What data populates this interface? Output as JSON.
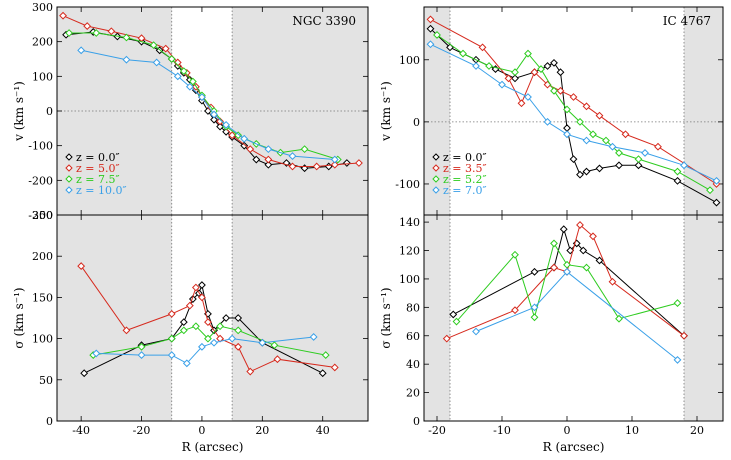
{
  "chart_data": [
    {
      "type": "scatter",
      "panel": "NGC 3390 velocity",
      "title": "NGC 3390",
      "xlabel": "",
      "ylabel": "v (km s⁻¹)",
      "xlim": [
        -48,
        55
      ],
      "ylim": [
        -300,
        300
      ],
      "xticks": [
        -40,
        -20,
        0,
        20,
        40
      ],
      "yticks": [
        -300,
        -200,
        -100,
        0,
        100,
        200,
        300
      ],
      "shade": [
        [
          -48,
          -10
        ],
        [
          10,
          55
        ]
      ],
      "zero_line": true,
      "vlines": [
        -10,
        10
      ],
      "legend_position": "bottom-left",
      "series": [
        {
          "name": "z = 0.0″",
          "color": "#000000",
          "points": [
            [
              -45,
              220
            ],
            [
              -36,
              228
            ],
            [
              -28,
              215
            ],
            [
              -20,
              200
            ],
            [
              -14,
              175
            ],
            [
              -10,
              150
            ],
            [
              -8,
              130
            ],
            [
              -6,
              110
            ],
            [
              -4,
              90
            ],
            [
              -2,
              60
            ],
            [
              0,
              30
            ],
            [
              2,
              0
            ],
            [
              4,
              -25
            ],
            [
              6,
              -45
            ],
            [
              8,
              -60
            ],
            [
              10,
              -75
            ],
            [
              14,
              -100
            ],
            [
              18,
              -140
            ],
            [
              22,
              -155
            ],
            [
              28,
              -150
            ],
            [
              34,
              -165
            ],
            [
              42,
              -160
            ],
            [
              48,
              -150
            ]
          ]
        },
        {
          "name": "z = 5.0″",
          "color": "#d62a1e",
          "points": [
            [
              -46,
              275
            ],
            [
              -38,
              245
            ],
            [
              -30,
              230
            ],
            [
              -20,
              210
            ],
            [
              -12,
              180
            ],
            [
              -8,
              140
            ],
            [
              -5,
              110
            ],
            [
              -2,
              70
            ],
            [
              0,
              40
            ],
            [
              3,
              10
            ],
            [
              6,
              -30
            ],
            [
              10,
              -70
            ],
            [
              16,
              -110
            ],
            [
              22,
              -140
            ],
            [
              30,
              -160
            ],
            [
              38,
              -160
            ],
            [
              44,
              -155
            ],
            [
              52,
              -150
            ]
          ]
        },
        {
          "name": "z = 7.5″",
          "color": "#2ecc20",
          "points": [
            [
              -44,
              225
            ],
            [
              -35,
              225
            ],
            [
              -25,
              212
            ],
            [
              -16,
              190
            ],
            [
              -10,
              150
            ],
            [
              -6,
              115
            ],
            [
              -3,
              85
            ],
            [
              0,
              45
            ],
            [
              4,
              0
            ],
            [
              8,
              -45
            ],
            [
              12,
              -70
            ],
            [
              18,
              -95
            ],
            [
              26,
              -120
            ],
            [
              34,
              -110
            ],
            [
              45,
              -140
            ]
          ]
        },
        {
          "name": "z = 10.0″",
          "color": "#3aa0e8",
          "points": [
            [
              -40,
              175
            ],
            [
              -25,
              148
            ],
            [
              -15,
              140
            ],
            [
              -8,
              100
            ],
            [
              -4,
              70
            ],
            [
              0,
              40
            ],
            [
              4,
              -10
            ],
            [
              8,
              -40
            ],
            [
              14,
              -80
            ],
            [
              22,
              -110
            ],
            [
              30,
              -130
            ],
            [
              44,
              -140
            ]
          ]
        }
      ]
    },
    {
      "type": "scatter",
      "panel": "NGC 3390 dispersion",
      "title": "",
      "xlabel": "R (arcsec)",
      "ylabel": "σ (km s⁻¹)",
      "xlim": [
        -48,
        55
      ],
      "ylim": [
        0,
        250
      ],
      "xticks": [
        -40,
        -20,
        0,
        20,
        40
      ],
      "yticks": [
        0,
        50,
        100,
        150,
        200,
        250
      ],
      "shade": [
        [
          -48,
          -10
        ],
        [
          10,
          55
        ]
      ],
      "vlines": [
        -10,
        10
      ],
      "series": [
        {
          "name": "z = 0.0″",
          "color": "#000000",
          "points": [
            [
              -39,
              58
            ],
            [
              -20,
              92
            ],
            [
              -10,
              100
            ],
            [
              -6,
              120
            ],
            [
              -3,
              148
            ],
            [
              -1,
              155
            ],
            [
              0,
              165
            ],
            [
              2,
              130
            ],
            [
              4,
              110
            ],
            [
              8,
              125
            ],
            [
              12,
              125
            ],
            [
              20,
              95
            ],
            [
              40,
              58
            ]
          ]
        },
        {
          "name": "z = 5.0″",
          "color": "#d62a1e",
          "points": [
            [
              -40,
              188
            ],
            [
              -25,
              110
            ],
            [
              -10,
              130
            ],
            [
              -4,
              140
            ],
            [
              -2,
              162
            ],
            [
              0,
              150
            ],
            [
              2,
              120
            ],
            [
              6,
              100
            ],
            [
              12,
              90
            ],
            [
              16,
              60
            ],
            [
              25,
              75
            ],
            [
              44,
              65
            ]
          ]
        },
        {
          "name": "z = 7.5″",
          "color": "#2ecc20",
          "points": [
            [
              -36,
              80
            ],
            [
              -20,
              90
            ],
            [
              -10,
              100
            ],
            [
              -6,
              110
            ],
            [
              -2,
              115
            ],
            [
              2,
              100
            ],
            [
              6,
              115
            ],
            [
              12,
              110
            ],
            [
              24,
              92
            ],
            [
              41,
              80
            ]
          ]
        },
        {
          "name": "z = 10.0″",
          "color": "#3aa0e8",
          "points": [
            [
              -35,
              82
            ],
            [
              -20,
              80
            ],
            [
              -10,
              80
            ],
            [
              -5,
              70
            ],
            [
              0,
              90
            ],
            [
              4,
              95
            ],
            [
              10,
              100
            ],
            [
              20,
              95
            ],
            [
              37,
              102
            ]
          ]
        }
      ]
    },
    {
      "type": "scatter",
      "panel": "IC 4767 velocity",
      "title": "IC 4767",
      "xlabel": "",
      "ylabel": "v (km s⁻¹)",
      "xlim": [
        -22,
        24
      ],
      "ylim": [
        -150,
        185
      ],
      "xticks": [
        -20,
        -10,
        0,
        10,
        20
      ],
      "yticks": [
        -100,
        0,
        100
      ],
      "shade": [
        [
          -22,
          -18
        ],
        [
          18,
          24
        ]
      ],
      "zero_line": true,
      "vlines": [
        -18,
        18
      ],
      "legend_position": "bottom-left",
      "series": [
        {
          "name": "z = 0.0″",
          "color": "#000000",
          "points": [
            [
              -21,
              150
            ],
            [
              -18,
              120
            ],
            [
              -14,
              100
            ],
            [
              -11,
              85
            ],
            [
              -8,
              70
            ],
            [
              -5,
              80
            ],
            [
              -3,
              90
            ],
            [
              -2,
              95
            ],
            [
              -1,
              80
            ],
            [
              0,
              -10
            ],
            [
              1,
              -60
            ],
            [
              2,
              -85
            ],
            [
              3,
              -80
            ],
            [
              5,
              -75
            ],
            [
              8,
              -70
            ],
            [
              11,
              -70
            ],
            [
              17,
              -95
            ],
            [
              23,
              -130
            ]
          ]
        },
        {
          "name": "z = 3.5″",
          "color": "#d62a1e",
          "points": [
            [
              -21,
              165
            ],
            [
              -13,
              120
            ],
            [
              -9,
              70
            ],
            [
              -7,
              30
            ],
            [
              -5,
              80
            ],
            [
              -3,
              60
            ],
            [
              -1,
              50
            ],
            [
              1,
              40
            ],
            [
              3,
              25
            ],
            [
              5,
              10
            ],
            [
              9,
              -20
            ],
            [
              14,
              -40
            ],
            [
              23,
              -100
            ]
          ]
        },
        {
          "name": "z = 5.2″",
          "color": "#2ecc20",
          "points": [
            [
              -20,
              140
            ],
            [
              -16,
              110
            ],
            [
              -12,
              90
            ],
            [
              -8,
              80
            ],
            [
              -6,
              110
            ],
            [
              -4,
              85
            ],
            [
              -2,
              50
            ],
            [
              0,
              20
            ],
            [
              2,
              0
            ],
            [
              4,
              -20
            ],
            [
              6,
              -30
            ],
            [
              8,
              -50
            ],
            [
              11,
              -60
            ],
            [
              17,
              -80
            ],
            [
              22,
              -110
            ]
          ]
        },
        {
          "name": "z = 7.0″",
          "color": "#3aa0e8",
          "points": [
            [
              -21,
              125
            ],
            [
              -14,
              90
            ],
            [
              -10,
              60
            ],
            [
              -6,
              40
            ],
            [
              -3,
              0
            ],
            [
              0,
              -20
            ],
            [
              3,
              -30
            ],
            [
              7,
              -40
            ],
            [
              12,
              -50
            ],
            [
              18,
              -70
            ],
            [
              23,
              -95
            ]
          ]
        }
      ]
    },
    {
      "type": "scatter",
      "panel": "IC 4767 dispersion",
      "title": "",
      "xlabel": "R (arcsec)",
      "ylabel": "σ (km s⁻¹)",
      "xlim": [
        -22,
        24
      ],
      "ylim": [
        0,
        145
      ],
      "xticks": [
        -20,
        -10,
        0,
        10,
        20
      ],
      "yticks": [
        0,
        20,
        40,
        60,
        80,
        100,
        120,
        140
      ],
      "shade": [
        [
          -22,
          -18
        ],
        [
          18,
          24
        ]
      ],
      "vlines": [
        -18,
        18
      ],
      "series": [
        {
          "name": "z = 0.0″",
          "color": "#000000",
          "points": [
            [
              -17.5,
              75
            ],
            [
              -5,
              105
            ],
            [
              -2,
              108
            ],
            [
              -0.5,
              135
            ],
            [
              0.5,
              120
            ],
            [
              1.5,
              125
            ],
            [
              2.5,
              120
            ],
            [
              5,
              113
            ],
            [
              18,
              60
            ]
          ]
        },
        {
          "name": "z = 3.5″",
          "color": "#d62a1e",
          "points": [
            [
              -18.5,
              58
            ],
            [
              -8,
              78
            ],
            [
              -2,
              108
            ],
            [
              0,
              105
            ],
            [
              2,
              138
            ],
            [
              4,
              130
            ],
            [
              7,
              98
            ],
            [
              18,
              60
            ]
          ]
        },
        {
          "name": "z = 5.2″",
          "color": "#2ecc20",
          "points": [
            [
              -17,
              70
            ],
            [
              -8,
              117
            ],
            [
              -5,
              73
            ],
            [
              -2,
              125
            ],
            [
              0,
              110
            ],
            [
              3,
              108
            ],
            [
              8,
              72
            ],
            [
              17,
              83
            ]
          ]
        },
        {
          "name": "z = 7.0″",
          "color": "#3aa0e8",
          "points": [
            [
              -14,
              63
            ],
            [
              -5,
              80
            ],
            [
              0,
              105
            ],
            [
              17,
              43
            ]
          ]
        }
      ]
    }
  ]
}
